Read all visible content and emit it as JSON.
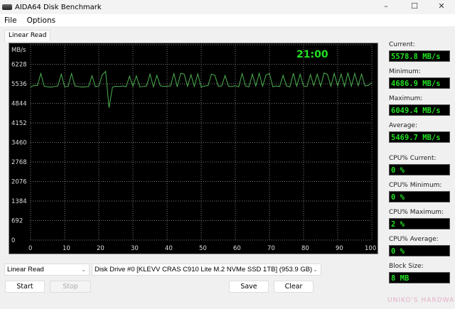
{
  "window": {
    "title": "AIDA64 Disk Benchmark",
    "minimize": "–",
    "maximize": "☐",
    "close": "✕"
  },
  "menu": [
    "File",
    "Options"
  ],
  "tab": "Linear Read",
  "chart_data": {
    "type": "line",
    "ylabel": "MB/s",
    "timer": "21:00",
    "xlim": [
      0,
      100
    ],
    "ylim": [
      0,
      6920
    ],
    "x_ticks": [
      "0",
      "10",
      "20",
      "30",
      "40",
      "50",
      "60",
      "70",
      "80",
      "90",
      "100 %"
    ],
    "y_ticks": [
      "0",
      "692",
      "1384",
      "2076",
      "2768",
      "3460",
      "4152",
      "4844",
      "5536",
      "6228"
    ],
    "grid": true,
    "color": "#4caf50",
    "values": [
      5420,
      5480,
      5470,
      5900,
      5450,
      5430,
      5420,
      5440,
      5460,
      5880,
      5430,
      5450,
      5900,
      5460,
      5440,
      5420,
      5430,
      5440,
      5820,
      5430,
      5460,
      5850,
      5980,
      4690,
      5420,
      5450,
      5440,
      5460,
      5430,
      5810,
      5450,
      5820,
      5430,
      5440,
      5460,
      5880,
      5430,
      5840,
      5470,
      5440,
      5450,
      5460,
      5900,
      5430,
      5910,
      5880,
      5450,
      5860,
      5440,
      5890,
      5420,
      5460,
      5470,
      5880,
      5840,
      5450,
      5460,
      5830,
      5450,
      5440,
      5470,
      5430,
      5900,
      5460,
      5430,
      5880,
      5460,
      5910,
      5450,
      5850,
      5900,
      5430,
      5460,
      5440,
      5840,
      5460,
      5430,
      5910,
      5450,
      5880,
      5460,
      5440,
      5860,
      5470,
      5880,
      5450,
      5920,
      5870,
      5450,
      5900,
      5460,
      5880,
      5440,
      5930,
      5450,
      5900,
      5470,
      5880,
      5460,
      5480,
      5580
    ]
  },
  "stats": [
    {
      "label": "Current:",
      "value": "5578.8 MB/s"
    },
    {
      "label": "Minimum:",
      "value": "4686.9 MB/s"
    },
    {
      "label": "Maximum:",
      "value": "6049.4 MB/s"
    },
    {
      "label": "Average:",
      "value": "5469.7 MB/s"
    },
    {
      "label": "CPU% Current:",
      "value": "0 %"
    },
    {
      "label": "CPU% Minimum:",
      "value": "0 %"
    },
    {
      "label": "CPU% Maximum:",
      "value": "2 %"
    },
    {
      "label": "CPU% Average:",
      "value": "0 %"
    },
    {
      "label": "Block Size:",
      "value": "8 MB"
    }
  ],
  "controls": {
    "test_select": "Linear Read",
    "drive_select": "Disk Drive #0  [KLEVV CRAS C910 Lite M.2 NVMe SSD 1TB]  (953.9 GB)",
    "start": "Start",
    "stop": "Stop",
    "save": "Save",
    "clear": "Clear"
  },
  "watermark": "UNIKO'S HARDWARE"
}
